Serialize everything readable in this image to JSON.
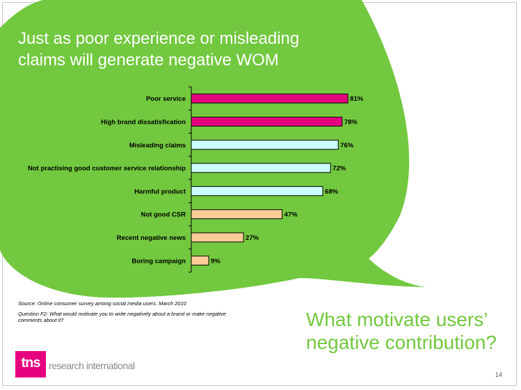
{
  "slide": {
    "title": "Just as poor experience or misleading claims will generate negative WOM",
    "source": "Source: Online consumer survey among social media users. March 2010",
    "question": "Question F2: What would motivate you to write negatively about a brand or make negative comments about it?",
    "callout": "What motivate users’ negative contribution?",
    "page_number": "14"
  },
  "logo": {
    "mark": "tns",
    "text": "research international",
    "color": "#e5007e"
  },
  "colors": {
    "bubble": "#72c83f",
    "magenta": "#e5007e",
    "cyan": "#ccffff",
    "peach": "#ffcc99"
  },
  "chart_data": {
    "type": "bar",
    "orientation": "horizontal",
    "categories": [
      "Poor service",
      "High brand dissatisfication",
      "Misleading claims",
      "Not practising good customer service relationship",
      "Harmful product",
      "Not good CSR",
      "Recent negative news",
      "Boring campaign"
    ],
    "values": [
      81,
      78,
      76,
      72,
      68,
      47,
      27,
      9
    ],
    "data_labels": [
      "81%",
      "78%",
      "76%",
      "72%",
      "68%",
      "47%",
      "27%",
      "9%"
    ],
    "bar_colors": [
      "#e5007e",
      "#e5007e",
      "#ccffff",
      "#ccffff",
      "#ccffff",
      "#ffcc99",
      "#ffcc99",
      "#ffcc99"
    ],
    "xlim": [
      0,
      100
    ],
    "grid": false,
    "legend": "none"
  }
}
